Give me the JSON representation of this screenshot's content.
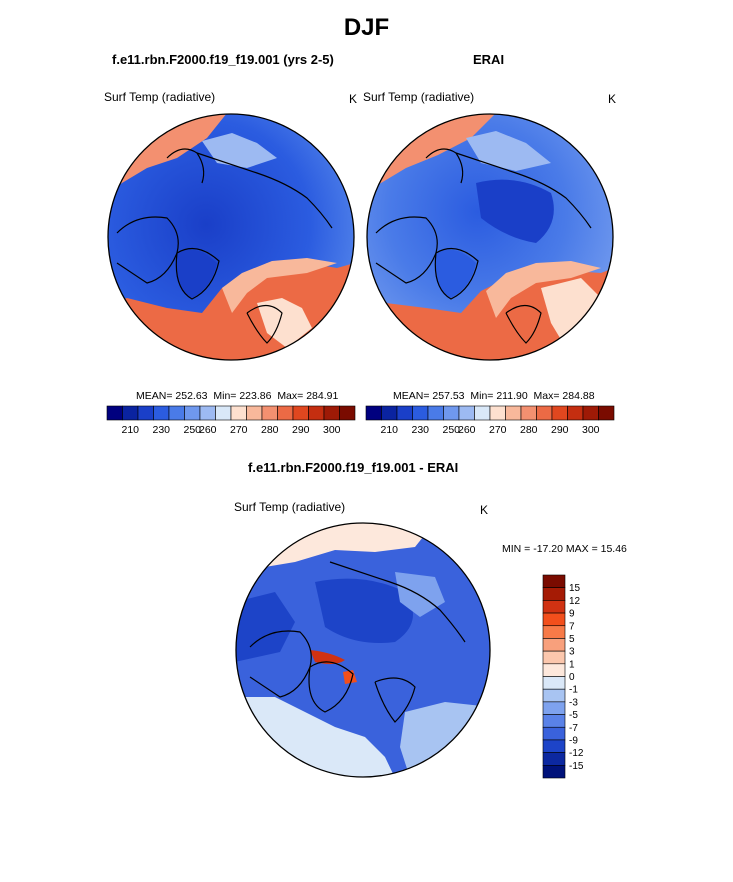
{
  "title": "DJF",
  "panels": [
    {
      "title": "f.e11.rbn.F2000.f19_f19.001 (yrs 2-5)",
      "variable": "Surf Temp (radiative)",
      "units": "K",
      "stats": {
        "mean_label": "MEAN=",
        "mean": "252.63",
        "min_label": "Min=",
        "min": "223.86",
        "max_label": "Max=",
        "max": "284.91"
      }
    },
    {
      "title": "ERAI",
      "variable": "Surf Temp (radiative)",
      "units": "K",
      "stats": {
        "mean_label": "MEAN=",
        "mean": "257.53",
        "min_label": "Min=",
        "min": "211.90",
        "max_label": "Max=",
        "max": "284.88"
      }
    }
  ],
  "diff_panel": {
    "title": "f.e11.rbn.F2000.f19_f19.001 - ERAI",
    "variable": "Surf Temp (radiative)",
    "units": "K",
    "minmax_text": "MIN = -17.20 MAX =  15.46"
  },
  "chart_data": [
    {
      "type": "heatmap",
      "projection": "north-polar-stereographic",
      "title": "f.e11.rbn.F2000.f19_f19.001 (yrs 2-5)",
      "variable": "Surf Temp (radiative)",
      "units": "K",
      "mean": 252.63,
      "min": 223.86,
      "max": 284.91,
      "colorbar": {
        "orientation": "horizontal",
        "tick_labels": [
          "210",
          "230",
          "250",
          "260",
          "270",
          "280",
          "290",
          "300"
        ],
        "range": [
          205,
          305
        ]
      }
    },
    {
      "type": "heatmap",
      "projection": "north-polar-stereographic",
      "title": "ERAI",
      "variable": "Surf Temp (radiative)",
      "units": "K",
      "mean": 257.53,
      "min": 211.9,
      "max": 284.88,
      "colorbar": {
        "orientation": "horizontal",
        "tick_labels": [
          "210",
          "230",
          "250",
          "260",
          "270",
          "280",
          "290",
          "300"
        ],
        "range": [
          205,
          305
        ]
      }
    },
    {
      "type": "heatmap",
      "projection": "north-polar-stereographic",
      "title": "f.e11.rbn.F2000.f19_f19.001 - ERAI",
      "variable": "Surf Temp (radiative)",
      "units": "K",
      "min": -17.2,
      "max": 15.46,
      "colorbar": {
        "orientation": "vertical",
        "tick_labels": [
          "15",
          "12",
          "9",
          "7",
          "5",
          "3",
          "1",
          "0",
          "-1",
          "-3",
          "-5",
          "-7",
          "-9",
          "-12",
          "-15"
        ]
      }
    }
  ],
  "colors": {
    "abs_colorbar": [
      "#00007f",
      "#0a23a0",
      "#1a3fc8",
      "#2b5ce0",
      "#4a7be8",
      "#6f98ee",
      "#9dbaf2",
      "#d9e8f8",
      "#fde0cf",
      "#f8b89b",
      "#f39070",
      "#ec6a45",
      "#e0471f",
      "#c42e10",
      "#9e1a06",
      "#7a0b00"
    ],
    "diff_colorbar": [
      "#7a0b00",
      "#a51b05",
      "#d03212",
      "#f24f1c",
      "#f77a48",
      "#f8a07c",
      "#fbc7ad",
      "#fde8dc",
      "#dae8f8",
      "#a8c4f2",
      "#7ea2ee",
      "#5a82e8",
      "#3a62dc",
      "#1d44c8",
      "#0c28a0",
      "#00127a"
    ],
    "ocean_cold": "#2b5ce0",
    "ocean_mid": "#4a7be8",
    "warm_atlantic": "#ec6a45",
    "warm_pacific": "#f39070",
    "coast": "#000000"
  }
}
